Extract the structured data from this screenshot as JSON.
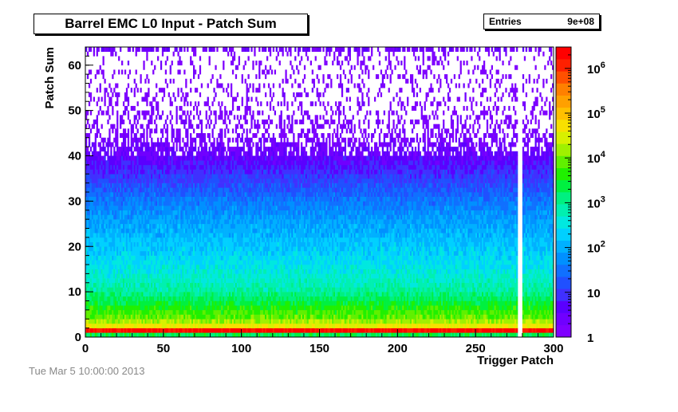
{
  "chart_data": {
    "type": "heatmap",
    "title": "Barrel EMC L0 Input - Patch Sum",
    "xlabel": "Trigger Patch",
    "ylabel": "Patch Sum",
    "xlim": [
      0,
      300
    ],
    "ylim": [
      0,
      64
    ],
    "x_ticks": [
      "0",
      "50",
      "100",
      "150",
      "200",
      "250",
      "300"
    ],
    "y_ticks": [
      "0",
      "10",
      "20",
      "30",
      "40",
      "50",
      "60"
    ],
    "z_scale": "log",
    "zlim": [
      1,
      3000000
    ],
    "z_ticks": [
      {
        "label": "1",
        "value": 1
      },
      {
        "label": "10",
        "value": 10
      },
      {
        "label": "10",
        "sup": "2",
        "value": 100
      },
      {
        "label": "10",
        "sup": "3",
        "value": 1000
      },
      {
        "label": "10",
        "sup": "4",
        "value": 10000
      },
      {
        "label": "10",
        "sup": "5",
        "value": 100000
      },
      {
        "label": "10",
        "sup": "6",
        "value": 1000000
      }
    ],
    "palette": [
      "#7f00ff",
      "#7000ff",
      "#5a00ff",
      "#4030ff",
      "#2050ff",
      "#1070ff",
      "#0090ff",
      "#00b0ff",
      "#00d0ff",
      "#00e8e0",
      "#00f0b0",
      "#00f080",
      "#00f040",
      "#20f000",
      "#60f000",
      "#a0f000",
      "#d8f000",
      "#f8e000",
      "#ffc000",
      "#ffa000",
      "#ff8000",
      "#ff5000",
      "#ff2000",
      "#ff0000"
    ],
    "profile": [
      {
        "y": 0,
        "log_count": 3.3
      },
      {
        "y": 1,
        "log_count": 6.3
      },
      {
        "y": 2,
        "log_count": 4.6
      },
      {
        "y": 3,
        "log_count": 4.2
      },
      {
        "y": 4,
        "log_count": 3.9
      },
      {
        "y": 6,
        "log_count": 3.6
      },
      {
        "y": 10,
        "log_count": 2.9
      },
      {
        "y": 15,
        "log_count": 2.5
      },
      {
        "y": 20,
        "log_count": 2.2
      },
      {
        "y": 25,
        "log_count": 1.9
      },
      {
        "y": 30,
        "log_count": 1.5
      },
      {
        "y": 35,
        "log_count": 1.0
      },
      {
        "y": 40,
        "log_count": 0.5
      },
      {
        "y": 45,
        "log_count": 0.2
      },
      {
        "y": 55,
        "log_count": 0.05
      },
      {
        "y": 62,
        "log_count": 0.05
      },
      {
        "y": 63,
        "log_count": 0.4
      }
    ],
    "empty_columns": [
      277,
      278,
      279
    ],
    "grid": false
  },
  "stats": {
    "label": "Entries",
    "value": "9e+08"
  },
  "date_stamp": "Tue Mar  5 10:00:00 2013"
}
